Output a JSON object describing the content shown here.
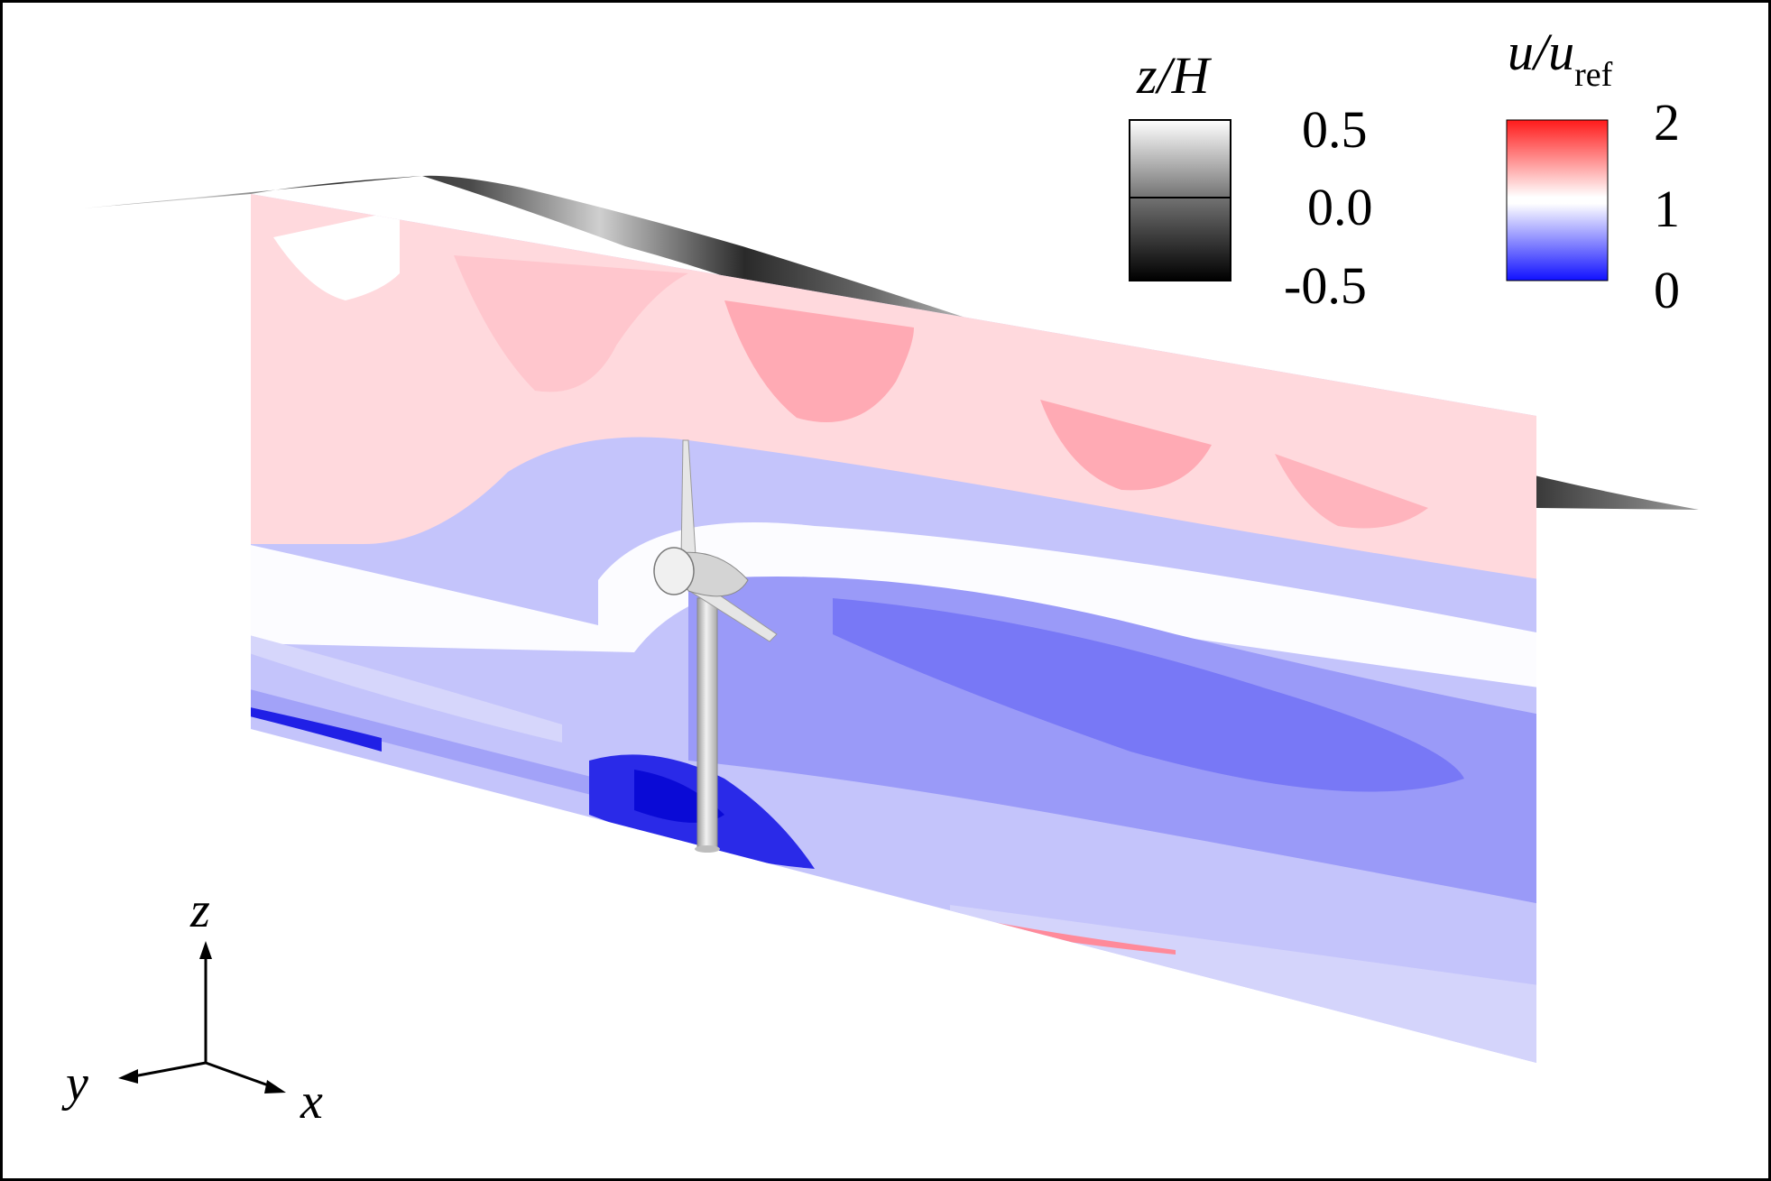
{
  "legend_elevation": {
    "title": "z/H",
    "ticks": [
      "0.5",
      "0.0",
      "-0.5"
    ],
    "colors": {
      "high": "#ffffff",
      "mid": "#6e6e6e",
      "low": "#000000"
    }
  },
  "legend_velocity": {
    "title_main": "u/u",
    "title_sub": "ref",
    "ticks": [
      "2",
      "1",
      "0"
    ],
    "colors": {
      "high": "#ff1a1a",
      "mid": "#ffffff",
      "low": "#1010ff"
    }
  },
  "axes_triad": {
    "z_label": "z",
    "y_label": "y",
    "x_label": "x"
  },
  "scene": {
    "surface_colors": {
      "crest": "#c8c8c8",
      "trough": "#2a2a2a"
    },
    "plane_colors": {
      "fast": "#ff9aa6",
      "free": "#ffffff",
      "slow": "#7a7af8",
      "near_zero": "#1212e6"
    },
    "turbine_color": "#d9d9d9"
  }
}
